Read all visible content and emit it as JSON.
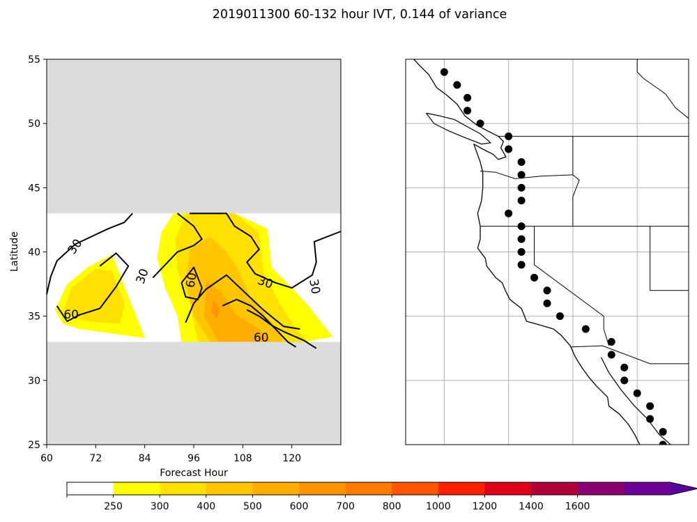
{
  "figure_title": "2019011300 60-132 hour IVT, 0.144 of variance",
  "chart_data": [
    {
      "type": "contour",
      "xlabel": "Forecast Hour",
      "ylabel": "Latitude",
      "xlim": [
        60,
        132
      ],
      "ylim": [
        25,
        55
      ],
      "x_ticks": [
        "60",
        "72",
        "84",
        "96",
        "108",
        "120"
      ],
      "y_ticks": [
        "25",
        "30",
        "35",
        "40",
        "45",
        "50",
        "55"
      ],
      "masked_regions": [
        {
          "lat_from": 43,
          "lat_to": 55,
          "color": "#dcdcdc"
        },
        {
          "lat_from": 25,
          "lat_to": 33,
          "color": "#dcdcdc"
        }
      ],
      "filled_regions": [
        {
          "level": 250,
          "color": "#ffff00",
          "points": [
            [
              76,
              39.8
            ],
            [
              70,
              38.8
            ],
            [
              65,
              37.5
            ],
            [
              62,
              35.5
            ],
            [
              64,
              34.4
            ],
            [
              68,
              34.0
            ],
            [
              84,
              33.3
            ],
            [
              80,
              36.5
            ]
          ]
        },
        {
          "level": 250,
          "color": "#ffff00",
          "points": [
            [
              91,
              43
            ],
            [
              106,
              43
            ],
            [
              114,
              41.8
            ],
            [
              115,
              38.8
            ],
            [
              120,
              37.2
            ],
            [
              124,
              35.8
            ],
            [
              130,
              33.4
            ],
            [
              123,
              33
            ],
            [
              112,
              33
            ],
            [
              93,
              33
            ],
            [
              92,
              35
            ],
            [
              89,
              37.2
            ],
            [
              87,
              39.5
            ],
            [
              88,
              41.5
            ]
          ]
        },
        {
          "level": 300,
          "color": "#ffe000",
          "points": [
            [
              66,
              37.2
            ],
            [
              72,
              38.7
            ],
            [
              76,
              38.5
            ],
            [
              79,
              36
            ],
            [
              78,
              34.4
            ],
            [
              70,
              34.6
            ],
            [
              64,
              35.2
            ]
          ]
        },
        {
          "level": 300,
          "color": "#ffe000",
          "points": [
            [
              94,
              43
            ],
            [
              106,
              43
            ],
            [
              112,
              41.5
            ],
            [
              113,
              38.5
            ],
            [
              117,
              36
            ],
            [
              121,
              34
            ],
            [
              124,
              33
            ],
            [
              97,
              33
            ],
            [
              95,
              36
            ],
            [
              92,
              38.5
            ],
            [
              91.5,
              41
            ]
          ]
        },
        {
          "level": 400,
          "color": "#ffc600",
          "points": [
            [
              95,
              40.2
            ],
            [
              100,
              41.2
            ],
            [
              104,
              40
            ],
            [
              107,
              38.5
            ],
            [
              110,
              36.4
            ],
            [
              116,
              34.2
            ],
            [
              118,
              33
            ],
            [
              100,
              33
            ],
            [
              96,
              35
            ],
            [
              94,
              37.5
            ]
          ]
        },
        {
          "level": 500,
          "color": "#ffad00",
          "points": [
            [
              99,
              37.8
            ],
            [
              103,
              36.8
            ],
            [
              106,
              35.2
            ],
            [
              112,
              34
            ],
            [
              115,
              33
            ],
            [
              102,
              33
            ],
            [
              98.5,
              35
            ]
          ]
        },
        {
          "level": 600,
          "color": "#ff9400",
          "points": [
            [
              100.8,
              36.3
            ],
            [
              102.3,
              35.5
            ],
            [
              101.5,
              34.8
            ],
            [
              100.4,
              35.3
            ]
          ]
        }
      ],
      "contours": [
        {
          "level": 30,
          "points": [
            [
              60,
              36.7
            ],
            [
              61,
              38.1
            ],
            [
              62.5,
              39.3
            ],
            [
              67,
              40.6
            ],
            [
              75,
              41.8
            ],
            [
              79,
              42.3
            ],
            [
              81,
              43
            ]
          ]
        },
        {
          "level": 30,
          "points": [
            [
              92,
              43
            ],
            [
              96,
              42
            ],
            [
              98,
              41
            ],
            [
              96,
              40.5
            ],
            [
              92,
              40
            ],
            [
              89,
              39
            ],
            [
              86,
              38
            ]
          ]
        },
        {
          "level": 30,
          "points": [
            [
              95,
              43
            ],
            [
              104,
              43
            ],
            [
              106,
              42
            ],
            [
              110,
              41.2
            ],
            [
              112,
              40.2
            ],
            [
              109,
              39.2
            ],
            [
              111,
              38.3
            ],
            [
              116,
              37.6
            ],
            [
              120,
              37.2
            ],
            [
              125,
              38.2
            ],
            [
              126,
              39.2
            ],
            [
              125.5,
              40.8
            ],
            [
              132,
              41.6
            ]
          ]
        },
        {
          "level": 60,
          "points": [
            [
              73,
              38.9
            ],
            [
              77,
              39.9
            ],
            [
              80,
              38.9
            ],
            [
              77,
              37.3
            ],
            [
              73,
              35.6
            ],
            [
              68,
              35.1
            ],
            [
              65,
              34.6
            ],
            [
              62.5,
              35.8
            ]
          ]
        },
        {
          "level": 60,
          "points": [
            [
              93,
              37.6
            ],
            [
              96,
              38.8
            ],
            [
              98,
              37.2
            ],
            [
              97,
              36.3
            ],
            [
              94,
              36.5
            ],
            [
              93,
              37.6
            ]
          ]
        },
        {
          "level": 60,
          "points": [
            [
              94,
              34.5
            ],
            [
              96,
              36
            ],
            [
              99,
              37.1
            ],
            [
              104,
              38.2
            ],
            [
              108,
              37
            ],
            [
              113,
              35.5
            ],
            [
              118,
              34.2
            ],
            [
              122,
              34
            ]
          ]
        },
        {
          "level": 60,
          "points": [
            [
              109,
              35.5
            ],
            [
              112,
              35
            ],
            [
              115,
              34.3
            ],
            [
              118,
              33.8
            ],
            [
              123,
              33.1
            ],
            [
              126,
              32.5
            ]
          ]
        },
        {
          "level": 60,
          "points": [
            [
              103,
              35.8
            ],
            [
              106.5,
              36.3
            ],
            [
              110,
              35.8
            ],
            [
              113,
              35
            ],
            [
              116,
              34
            ],
            [
              119,
              33
            ],
            [
              121,
              32.6
            ]
          ]
        }
      ],
      "contour_labels": [
        {
          "text": "30",
          "x": 67,
          "y": 40.4,
          "rotate": -55
        },
        {
          "text": "30",
          "x": 83.5,
          "y": 38.1,
          "rotate": -70
        },
        {
          "text": "30",
          "x": 113.5,
          "y": 37.6,
          "rotate": 20
        },
        {
          "text": "30",
          "x": 125.5,
          "y": 37.3,
          "rotate": 80
        },
        {
          "text": "60",
          "x": 66,
          "y": 35.1,
          "rotate": 0
        },
        {
          "text": "60",
          "x": 95.5,
          "y": 37.8,
          "rotate": -80
        },
        {
          "text": "60",
          "x": 112.5,
          "y": 33.3,
          "rotate": 0
        }
      ]
    },
    {
      "type": "map",
      "projection": "latlon",
      "lon_range": [
        -130,
        -108
      ],
      "lat_range": [
        25,
        55
      ],
      "grid": true,
      "grid_lons": [
        -127,
        -122,
        -117,
        -112
      ],
      "grid_lats": [
        30,
        35,
        40,
        45,
        50
      ],
      "points": [
        {
          "lon": -127.0,
          "lat": 54.0
        },
        {
          "lon": -126.0,
          "lat": 53.0
        },
        {
          "lon": -125.2,
          "lat": 52.0
        },
        {
          "lon": -125.2,
          "lat": 51.0
        },
        {
          "lon": -124.2,
          "lat": 50.0
        },
        {
          "lon": -122.0,
          "lat": 49.0
        },
        {
          "lon": -122.0,
          "lat": 48.0
        },
        {
          "lon": -121.0,
          "lat": 47.0
        },
        {
          "lon": -121.0,
          "lat": 46.0
        },
        {
          "lon": -121.0,
          "lat": 45.0
        },
        {
          "lon": -121.0,
          "lat": 44.0
        },
        {
          "lon": -122.0,
          "lat": 43.0
        },
        {
          "lon": -121.0,
          "lat": 42.0
        },
        {
          "lon": -121.0,
          "lat": 41.0
        },
        {
          "lon": -121.0,
          "lat": 40.0
        },
        {
          "lon": -121.0,
          "lat": 39.0
        },
        {
          "lon": -120.0,
          "lat": 38.0
        },
        {
          "lon": -119.0,
          "lat": 37.0
        },
        {
          "lon": -119.0,
          "lat": 36.0
        },
        {
          "lon": -118.0,
          "lat": 35.0
        },
        {
          "lon": -116.0,
          "lat": 34.0
        },
        {
          "lon": -114.0,
          "lat": 33.0
        },
        {
          "lon": -114.0,
          "lat": 32.0
        },
        {
          "lon": -113.0,
          "lat": 31.0
        },
        {
          "lon": -113.0,
          "lat": 30.0
        },
        {
          "lon": -112.0,
          "lat": 29.0
        },
        {
          "lon": -111.0,
          "lat": 28.0
        },
        {
          "lon": -111.0,
          "lat": 27.0
        },
        {
          "lon": -110.0,
          "lat": 26.0
        },
        {
          "lon": -110.0,
          "lat": 25.0
        }
      ],
      "coastline": [
        [
          -130,
          55.7
        ],
        [
          -129,
          54.6
        ],
        [
          -128.2,
          53.8
        ],
        [
          -127.6,
          52.8
        ],
        [
          -126.8,
          52.2
        ],
        [
          -126.0,
          51.5
        ],
        [
          -125.4,
          50.6
        ],
        [
          -124.5,
          49.9
        ],
        [
          -123.6,
          49.4
        ],
        [
          -122.8,
          49.0
        ],
        [
          -122.4,
          48.6
        ],
        [
          -122.6,
          48.1
        ],
        [
          -122.2,
          47.4
        ],
        [
          -122.8,
          47.2
        ],
        [
          -123.2,
          47.6
        ],
        [
          -124.0,
          48.0
        ],
        [
          -124.7,
          48.4
        ],
        [
          -124.2,
          47.0
        ],
        [
          -124.0,
          46.2
        ],
        [
          -124.0,
          45.0
        ],
        [
          -124.1,
          44.0
        ],
        [
          -124.4,
          43.0
        ],
        [
          -124.2,
          42.0
        ],
        [
          -124.2,
          41.0
        ],
        [
          -124.4,
          40.3
        ],
        [
          -123.8,
          39.5
        ],
        [
          -123.7,
          38.9
        ],
        [
          -123.0,
          38.0
        ],
        [
          -122.5,
          37.6
        ],
        [
          -122.2,
          36.9
        ],
        [
          -121.9,
          36.3
        ],
        [
          -121.0,
          35.6
        ],
        [
          -120.6,
          34.6
        ],
        [
          -119.5,
          34.3
        ],
        [
          -118.5,
          34.0
        ],
        [
          -117.9,
          33.5
        ],
        [
          -117.2,
          32.7
        ],
        [
          -116.8,
          31.8
        ],
        [
          -116.3,
          31.0
        ],
        [
          -115.8,
          30.3
        ],
        [
          -115.2,
          29.6
        ],
        [
          -114.3,
          28.7
        ],
        [
          -114.2,
          28.0
        ],
        [
          -113.4,
          27.4
        ],
        [
          -112.7,
          26.6
        ],
        [
          -112.2,
          25.8
        ],
        [
          -111.8,
          25.0
        ]
      ],
      "vancouver_island": [
        [
          -128.4,
          50.8
        ],
        [
          -127.4,
          50.6
        ],
        [
          -126.2,
          50.3
        ],
        [
          -125.3,
          49.8
        ],
        [
          -124.2,
          49.2
        ],
        [
          -123.4,
          48.5
        ],
        [
          -124.1,
          48.4
        ],
        [
          -125.4,
          48.9
        ],
        [
          -126.6,
          49.4
        ],
        [
          -127.8,
          50.0
        ],
        [
          -128.4,
          50.8
        ]
      ],
      "gulf_of_california": [
        [
          -114.8,
          31.8
        ],
        [
          -114.2,
          30.6
        ],
        [
          -113.2,
          29.2
        ],
        [
          -112.2,
          28.0
        ],
        [
          -111.2,
          27.0
        ],
        [
          -110.3,
          25.8
        ],
        [
          -109.4,
          25.0
        ]
      ],
      "borders": [
        [
          [
            -122.8,
            49.0
          ],
          [
            -108,
            49.0
          ]
        ],
        [
          [
            -124.2,
            46.3
          ],
          [
            -123,
            46.2
          ],
          [
            -121.5,
            45.7
          ],
          [
            -119.5,
            45.9
          ],
          [
            -117.0,
            46.0
          ]
        ],
        [
          [
            -117.0,
            49.0
          ],
          [
            -117.0,
            46.0
          ],
          [
            -116.5,
            45.6
          ],
          [
            -117.0,
            44.3
          ],
          [
            -117.0,
            42.0
          ]
        ],
        [
          [
            -124.2,
            42.0
          ],
          [
            -108,
            42.0
          ]
        ],
        [
          [
            -120.0,
            42.0
          ],
          [
            -120.0,
            39.0
          ],
          [
            -114.6,
            35.0
          ],
          [
            -114.6,
            34.0
          ],
          [
            -114.2,
            32.7
          ]
        ],
        [
          [
            -111.0,
            42.0
          ],
          [
            -111.0,
            37.0
          ],
          [
            -108,
            37.0
          ]
        ],
        [
          [
            -117.2,
            32.6
          ],
          [
            -114.7,
            32.7
          ],
          [
            -111.0,
            31.3
          ],
          [
            -108,
            31.3
          ]
        ],
        [
          [
            -112.0,
            55.0
          ],
          [
            -112.0,
            54.0
          ],
          [
            -111.5,
            53.5
          ],
          [
            -110.5,
            52.8
          ],
          [
            -109.8,
            52.3
          ],
          [
            -109.0,
            51.2
          ],
          [
            -108,
            50.4
          ]
        ]
      ]
    }
  ],
  "colorbar": {
    "levels": [
      "250",
      "300",
      "400",
      "500",
      "600",
      "700",
      "800",
      "1000",
      "1200",
      "1400",
      "1600"
    ],
    "colors": [
      "#ffffff",
      "#ffff00",
      "#ffe000",
      "#ffc600",
      "#ffad00",
      "#ff9400",
      "#ff7a00",
      "#ff5500",
      "#ff2000",
      "#e0001a",
      "#b00038",
      "#8a0070",
      "#6e009a",
      "#5a009a"
    ]
  }
}
